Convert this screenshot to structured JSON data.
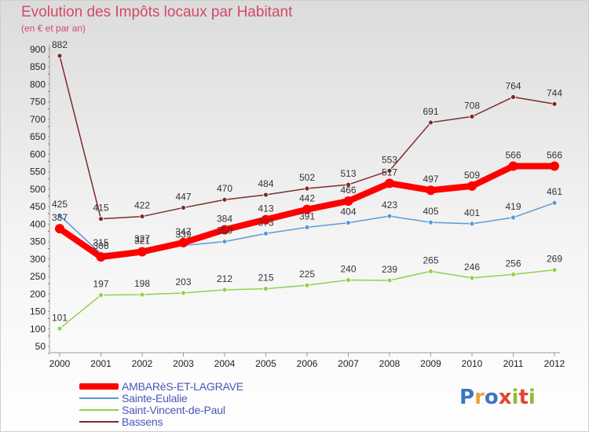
{
  "title": "Evolution des Impôts locaux par Habitant",
  "subtitle": "(en € et par an)",
  "logo": {
    "text": "Proxiti",
    "colors": [
      "#3a76c4",
      "#e9a23b",
      "#3a76c4",
      "#e0462f",
      "#8cbd3c",
      "#e0462f",
      "#8cbd3c"
    ]
  },
  "chart_data": {
    "type": "line",
    "x": [
      "2000",
      "2001",
      "2002",
      "2003",
      "2004",
      "2005",
      "2006",
      "2007",
      "2008",
      "2009",
      "2010",
      "2011",
      "2012"
    ],
    "ylim": [
      50,
      900
    ],
    "yticks": [
      50,
      100,
      150,
      200,
      250,
      300,
      350,
      400,
      450,
      500,
      550,
      600,
      650,
      700,
      750,
      800,
      850,
      900
    ],
    "grid": false,
    "legend": "bottom-left",
    "series": [
      {
        "name": "AMBARèS-ET-LAGRAVE",
        "color": "#ff0000",
        "values": [
          387,
          306,
          321,
          347,
          384,
          413,
          442,
          466,
          517,
          497,
          509,
          566,
          566
        ]
      },
      {
        "name": "Sainte-Eulalie",
        "color": "#5b9bd5",
        "values": [
          425,
          315,
          327,
          339,
          350,
          373,
          391,
          404,
          423,
          405,
          401,
          419,
          461
        ]
      },
      {
        "name": "Saint-Vincent-de-Paul",
        "color": "#92d050",
        "values": [
          101,
          197,
          198,
          203,
          212,
          215,
          225,
          240,
          239,
          265,
          246,
          256,
          269
        ]
      },
      {
        "name": "Bassens",
        "color": "#7f2a2a",
        "values": [
          882,
          415,
          422,
          447,
          470,
          484,
          502,
          513,
          553,
          691,
          708,
          764,
          744
        ]
      }
    ]
  }
}
